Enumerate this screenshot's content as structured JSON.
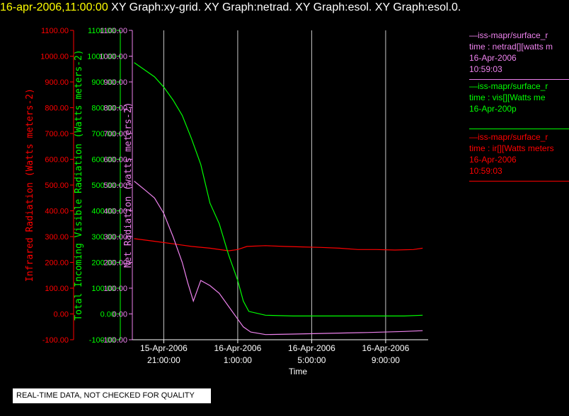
{
  "header": {
    "timestamp": "16-apr-2006,11:00:00",
    "graphs": "XY Graph:xy-grid.  XY Graph:netrad.  XY Graph:esol.  XY Graph:esol.0."
  },
  "legend": [
    {
      "line1": "—iss-mapr/surface_r",
      "line2": "time : netrad[][watts m",
      "line3": "16-Apr-2006",
      "line4": "10:59:03",
      "color": "#ee82ee"
    },
    {
      "line1": "—iss-mapr/surface_r",
      "line2": "time : vis[][Watts me",
      "line3": "16-Apr-200p",
      "line4": "",
      "color": "#00ff00"
    },
    {
      "line1": "—iss-mapr/surface_r",
      "line2": "time : ir[][Watts meters",
      "line3": "16-Apr-2006",
      "line4": "10:59:03",
      "color": "#ff0000"
    }
  ],
  "footnote": "REAL-TIME DATA, NOT CHECKED FOR QUALITY",
  "chart_data": {
    "type": "line",
    "xlabel": "Time",
    "x_ticks": [
      {
        "line1": "15-Apr-2006",
        "line2": "21:00:00",
        "hour": 21
      },
      {
        "line1": "16-Apr-2006",
        "line2": "1:00:00",
        "hour": 25
      },
      {
        "line1": "16-Apr-2006",
        "line2": "5:00:00",
        "hour": 29
      },
      {
        "line1": "16-Apr-2006",
        "line2": "9:00:00",
        "hour": 33
      }
    ],
    "xlim": [
      19.3,
      35.3
    ],
    "ylim": [
      -100,
      1100
    ],
    "y_ticks": [
      "1100.00",
      "1000.00",
      "900.00",
      "800.00",
      "700.00",
      "600.00",
      "500.00",
      "400.00",
      "300.00",
      "200.00",
      "100.00",
      "0.00",
      "-100.00"
    ],
    "axes": [
      {
        "label": "Infrared Radiation (Watts meters-2)",
        "color": "#ff0000"
      },
      {
        "label": "Total Incoming Visible Radiation (Watts meters-2)",
        "color": "#00ff00"
      },
      {
        "label": "Net Radiation (watts meters-2)",
        "color": "#ee82ee"
      }
    ],
    "series": [
      {
        "name": "ir",
        "color": "#ff0000",
        "points": [
          [
            19.4,
            292
          ],
          [
            20.5,
            282
          ],
          [
            21.5,
            272
          ],
          [
            22.5,
            262
          ],
          [
            23.5,
            255
          ],
          [
            24.5,
            245
          ],
          [
            25.0,
            250
          ],
          [
            25.5,
            262
          ],
          [
            26.5,
            265
          ],
          [
            27.5,
            262
          ],
          [
            28.5,
            260
          ],
          [
            29.5,
            258
          ],
          [
            30.5,
            255
          ],
          [
            31.5,
            250
          ],
          [
            32.5,
            250
          ],
          [
            33.5,
            248
          ],
          [
            34.5,
            250
          ],
          [
            35.0,
            255
          ]
        ]
      },
      {
        "name": "vis",
        "color": "#00ff00",
        "points": [
          [
            19.4,
            975
          ],
          [
            20.0,
            945
          ],
          [
            20.5,
            920
          ],
          [
            21.0,
            880
          ],
          [
            21.5,
            830
          ],
          [
            22.0,
            770
          ],
          [
            22.5,
            680
          ],
          [
            23.0,
            580
          ],
          [
            23.5,
            430
          ],
          [
            24.0,
            350
          ],
          [
            24.5,
            230
          ],
          [
            25.0,
            130
          ],
          [
            25.3,
            50
          ],
          [
            25.6,
            10
          ],
          [
            26.5,
            -5
          ],
          [
            28.0,
            -8
          ],
          [
            30.0,
            -8
          ],
          [
            32.0,
            -8
          ],
          [
            34.0,
            -8
          ],
          [
            35.0,
            -5
          ]
        ]
      },
      {
        "name": "netrad",
        "color": "#ee82ee",
        "points": [
          [
            19.4,
            515
          ],
          [
            20.0,
            480
          ],
          [
            20.5,
            450
          ],
          [
            21.0,
            390
          ],
          [
            21.5,
            300
          ],
          [
            22.0,
            200
          ],
          [
            22.3,
            120
          ],
          [
            22.6,
            50
          ],
          [
            23.0,
            130
          ],
          [
            23.5,
            110
          ],
          [
            24.0,
            80
          ],
          [
            24.5,
            30
          ],
          [
            25.0,
            -20
          ],
          [
            25.3,
            -50
          ],
          [
            25.7,
            -70
          ],
          [
            26.5,
            -80
          ],
          [
            28.0,
            -78
          ],
          [
            30.0,
            -75
          ],
          [
            32.0,
            -72
          ],
          [
            34.0,
            -68
          ],
          [
            35.0,
            -65
          ]
        ]
      }
    ],
    "grid": "vertical at x ticks",
    "legend_position": "right"
  }
}
